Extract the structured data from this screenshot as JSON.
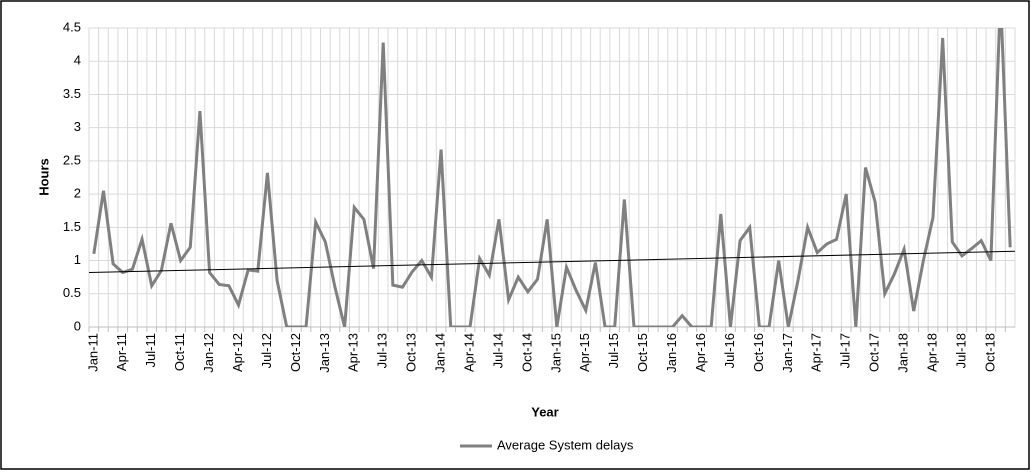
{
  "chart_data": {
    "type": "line",
    "xlabel": "Year",
    "ylabel": "Hours",
    "categories": [
      "Jan-11",
      null,
      null,
      "Apr-11",
      null,
      null,
      "Jul-11",
      null,
      null,
      "Oct-11",
      null,
      null,
      "Jan-12",
      null,
      null,
      "Apr-12",
      null,
      null,
      "Jul-12",
      null,
      null,
      "Oct-12",
      null,
      null,
      "Jan-13",
      null,
      null,
      "Apr-13",
      null,
      null,
      "Jul-13",
      null,
      null,
      "Oct-13",
      null,
      null,
      "Jan-14",
      null,
      null,
      "Apr-14",
      null,
      null,
      "Jul-14",
      null,
      null,
      "Oct-14",
      null,
      null,
      "Jan-15",
      null,
      null,
      "Apr-15",
      null,
      null,
      "Jul-15",
      null,
      null,
      "Oct-15",
      null,
      null,
      "Jan-16",
      null,
      null,
      "Apr-16",
      null,
      null,
      "Jul-16",
      null,
      null,
      "Oct-16",
      null,
      null,
      "Jan-17",
      null,
      null,
      "Apr-17",
      null,
      null,
      "Jul-17",
      null,
      null,
      "Oct-17",
      null,
      null,
      "Jan-18",
      null,
      null,
      "Apr-18",
      null,
      null,
      "Jul-18",
      null,
      null,
      "Oct-18",
      null,
      null
    ],
    "series": [
      {
        "name": "Average System delays",
        "color": "#808080",
        "values": [
          1.1,
          2.05,
          0.95,
          0.82,
          0.87,
          1.32,
          0.62,
          0.85,
          1.56,
          1.0,
          1.2,
          3.25,
          0.82,
          0.64,
          0.62,
          0.33,
          0.86,
          0.84,
          2.32,
          0.7,
          0,
          0,
          0,
          1.58,
          1.28,
          0.6,
          0,
          1.8,
          1.62,
          0.88,
          4.28,
          0.63,
          0.6,
          0.83,
          1.0,
          0.75,
          2.67,
          0,
          0,
          0,
          1.03,
          0.78,
          1.62,
          0.41,
          0.75,
          0.53,
          0.72,
          1.62,
          0,
          0.9,
          0.55,
          0.25,
          0.97,
          0,
          0,
          1.92,
          0,
          0,
          0,
          0,
          0,
          0.17,
          0,
          0,
          0,
          1.7,
          0,
          1.3,
          1.5,
          0,
          0,
          1.0,
          0,
          0.7,
          1.5,
          1.12,
          1.25,
          1.32,
          2.0,
          0,
          2.4,
          1.88,
          0.5,
          0.8,
          1.17,
          0.24,
          1.0,
          1.65,
          4.35,
          1.28,
          1.07,
          1.18,
          1.3,
          1.0,
          5,
          1.2
        ]
      }
    ],
    "trendline": {
      "color": "#000000",
      "values": [
        0.82,
        1.14
      ]
    },
    "ylim": [
      0,
      4.5
    ],
    "yticks": [
      0,
      0.5,
      1,
      1.5,
      2,
      2.5,
      3,
      3.5,
      4,
      4.5
    ],
    "grid": true
  }
}
